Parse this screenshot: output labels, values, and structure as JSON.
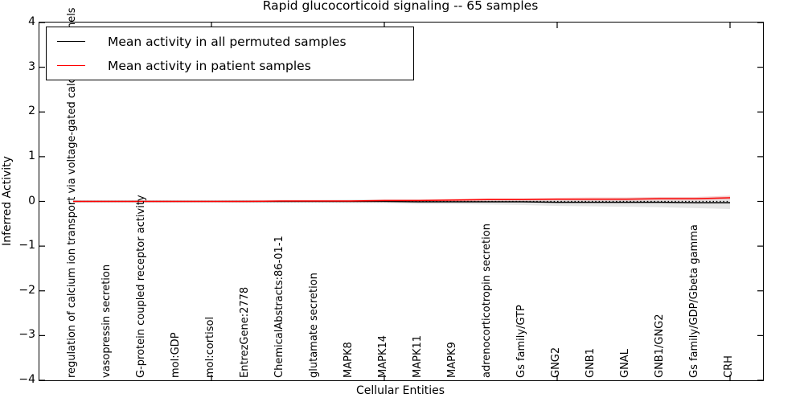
{
  "figure": {
    "title": "Rapid glucocorticoid signaling -- 65 samples",
    "xlabel": "Cellular Entities",
    "ylabel": "Inferred Activity"
  },
  "legend": {
    "entries": [
      {
        "label": "Mean activity in all permuted samples",
        "color": "#000000"
      },
      {
        "label": "Mean activity in patient samples",
        "color": "#ff0000"
      }
    ]
  },
  "chart_data": {
    "type": "line",
    "title": "Rapid glucocorticoid signaling -- 65 samples",
    "xlabel": "Cellular Entities",
    "ylabel": "Inferred Activity",
    "ylim": [
      -4,
      4
    ],
    "yticks": [
      4,
      3,
      2,
      1,
      0,
      -1,
      -2,
      -3,
      -4
    ],
    "x_major_tick_indices": [
      5,
      10,
      15,
      20
    ],
    "zero_line": true,
    "grid": false,
    "legend_position": "upper left",
    "categories": [
      "regulation of calcium ion transport via voltage-gated calcium channels",
      "vasopressin secretion",
      "G-protein coupled receptor activity",
      "mol:GDP",
      "mol:cortisol",
      "EntrezGene:2778",
      "ChemicalAbstracts:86-01-1",
      "glutamate secretion",
      "MAPK8",
      "MAPK14",
      "MAPK11",
      "MAPK9",
      "adrenocorticotropin secretion",
      "Gs family/GTP",
      "GNG2",
      "GNB1",
      "GNAL",
      "GNB1/GNG2",
      "Gs family/GDP/Gbeta gamma",
      "CRH"
    ],
    "series": [
      {
        "name": "Mean activity in all permuted samples",
        "color": "#000000",
        "values": [
          0,
          0,
          0,
          0,
          0,
          0,
          0,
          0,
          0,
          0,
          -0.01,
          -0.01,
          -0.01,
          -0.01,
          -0.02,
          -0.02,
          -0.02,
          -0.02,
          -0.03,
          -0.03
        ],
        "band_halfwidth": [
          0.02,
          0.02,
          0.02,
          0.02,
          0.02,
          0.03,
          0.03,
          0.03,
          0.04,
          0.04,
          0.05,
          0.05,
          0.06,
          0.07,
          0.08,
          0.09,
          0.1,
          0.11,
          0.12,
          0.14
        ],
        "band_color": "#c8c8c8"
      },
      {
        "name": "Mean activity in patient samples",
        "color": "#ff0000",
        "values": [
          0,
          0,
          0,
          0,
          0,
          0,
          0.01,
          0.01,
          0.01,
          0.02,
          0.02,
          0.03,
          0.04,
          0.04,
          0.05,
          0.05,
          0.05,
          0.06,
          0.06,
          0.08
        ],
        "band_halfwidth": [
          0.01,
          0.01,
          0.01,
          0.01,
          0.01,
          0.01,
          0.01,
          0.02,
          0.02,
          0.02,
          0.02,
          0.03,
          0.03,
          0.03,
          0.03,
          0.04,
          0.04,
          0.04,
          0.04,
          0.05
        ],
        "band_color": "#ff8080"
      }
    ]
  }
}
